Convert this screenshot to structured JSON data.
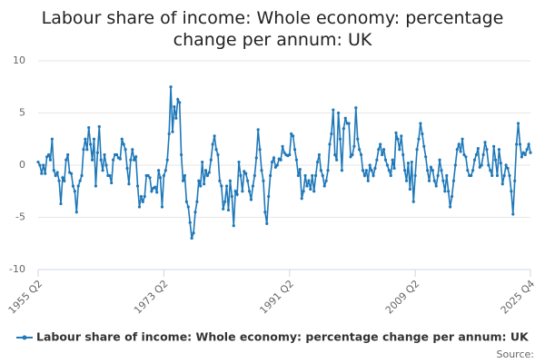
{
  "chart_data": {
    "type": "line",
    "title": "Labour share of income: Whole economy: percentage change per annum: UK",
    "source": "Source:",
    "categories": [
      "1955 Q2",
      null,
      null,
      null,
      null,
      null,
      null,
      null,
      null,
      null,
      null,
      null,
      null,
      null,
      null,
      null,
      null,
      null,
      null,
      null,
      null,
      null,
      null,
      null,
      null,
      null,
      null,
      null,
      null,
      null,
      null,
      null,
      null,
      null,
      null,
      null,
      null,
      null,
      null,
      null,
      null,
      null,
      null,
      null,
      null,
      null,
      null,
      null,
      null,
      null,
      null,
      null,
      null,
      null,
      null,
      null,
      null,
      null,
      null,
      null,
      null,
      null,
      null,
      null,
      null,
      null,
      null,
      null,
      null,
      null,
      null,
      null,
      "1973 Q2",
      null,
      null,
      null,
      null,
      null,
      null,
      null,
      null,
      null,
      null,
      null,
      null,
      null,
      null,
      null,
      null,
      null,
      null,
      null,
      null,
      null,
      null,
      null,
      null,
      null,
      null,
      null,
      null,
      null,
      null,
      null,
      null,
      null,
      null,
      null,
      null,
      null,
      null,
      null,
      null,
      null,
      null,
      null,
      null,
      null,
      null,
      null,
      null,
      null,
      null,
      null,
      null,
      null,
      null,
      null,
      null,
      null,
      null,
      null,
      null,
      null,
      null,
      null,
      null,
      null,
      null,
      null,
      null,
      null,
      null,
      null,
      "1991 Q2",
      null,
      null,
      null,
      null,
      null,
      null,
      null,
      null,
      null,
      null,
      null,
      null,
      null,
      null,
      null,
      null,
      null,
      null,
      null,
      null,
      null,
      null,
      null,
      null,
      null,
      null,
      null,
      null,
      null,
      null,
      null,
      null,
      null,
      null,
      null,
      null,
      null,
      null,
      null,
      null,
      null,
      null,
      null,
      null,
      null,
      null,
      null,
      null,
      null,
      null,
      null,
      null,
      null,
      null,
      null,
      null,
      null,
      null,
      null,
      null,
      null,
      null,
      null,
      null,
      null,
      null,
      null,
      null,
      null,
      null,
      null,
      "2009 Q2",
      null,
      null,
      null,
      null,
      null,
      null,
      null,
      null,
      null,
      null,
      null,
      null,
      null,
      null,
      null,
      null,
      null,
      null,
      null,
      null,
      null,
      null,
      null,
      null,
      null,
      null,
      null,
      null,
      null,
      null,
      null,
      null,
      null,
      null,
      null,
      null,
      null,
      null,
      null,
      null,
      null,
      null,
      null,
      null,
      null,
      null,
      null,
      null,
      null,
      null,
      null,
      null,
      null,
      null,
      null,
      null,
      null,
      null,
      null,
      null,
      null,
      null,
      null,
      null,
      null,
      "2025 Q4"
    ],
    "series": [
      {
        "name": "Labour share of income: Whole economy: percentage change per annum: UK",
        "color": "#1f78b8",
        "values": [
          0.3,
          0,
          -0.8,
          0,
          -0.8,
          0.8,
          1,
          0.5,
          2.5,
          -0.5,
          -1,
          -0.7,
          -1.5,
          -3.7,
          -1.2,
          -1.5,
          0.5,
          1,
          -0.7,
          -0.8,
          -2,
          -2.5,
          -4.5,
          -2,
          -1.5,
          -1,
          1.5,
          2.5,
          1.5,
          3.6,
          2,
          0.5,
          2.5,
          -2,
          1.2,
          3.7,
          0.5,
          -0.5,
          1,
          0,
          -1,
          -1,
          -1.7,
          0.5,
          1,
          1,
          0.7,
          0.6,
          2.5,
          2,
          1.5,
          -0.3,
          -1.8,
          0.5,
          1.5,
          0.5,
          0.8,
          -2,
          -4,
          -3,
          -3.5,
          -3,
          -1,
          -1,
          -1.2,
          -2.5,
          -2.2,
          -2.1,
          -2.6,
          -0.5,
          -1.2,
          -4,
          -1,
          -0.5,
          0.5,
          3,
          7.5,
          3.2,
          5.6,
          4.5,
          6.3,
          6,
          1,
          -1.5,
          -1,
          -3.5,
          -4,
          -5.5,
          -7,
          -6.5,
          -4.5,
          -3.5,
          -1.5,
          -2,
          0.3,
          -1.8,
          -0.5,
          -1,
          -0.7,
          0.5,
          2,
          2.8,
          1.5,
          1,
          -1.5,
          -2,
          -4.2,
          -3.5,
          -2,
          -4.3,
          -1.5,
          -3,
          -5.8,
          -2.5,
          -2.8,
          0.3,
          -1,
          -2.5,
          -0.6,
          -0.8,
          -1.5,
          -2.5,
          -3.3,
          -2,
          -1,
          0.7,
          3.4,
          1.5,
          -0.5,
          -1.5,
          -4.5,
          -5.6,
          -3,
          -1,
          0.3,
          0.7,
          -0.2,
          0,
          0.6,
          0.5,
          1.8,
          1.2,
          1,
          0.9,
          1,
          3,
          2.8,
          1.5,
          0.5,
          -1,
          -0.4,
          -3.2,
          -2.5,
          -1,
          -2,
          -1.5,
          -2.3,
          -1,
          -2.5,
          -1,
          0.3,
          1,
          -0.5,
          -1,
          -2,
          -1.5,
          -0.5,
          2,
          3,
          5.3,
          1,
          0.5,
          5,
          2.5,
          -0.5,
          3.5,
          4.5,
          4,
          4,
          0.8,
          1,
          1.8,
          5.5,
          2.5,
          1.5,
          1,
          -0.5,
          -1,
          -0.5,
          -1.5,
          0,
          -0.5,
          -1,
          -0.3,
          0.5,
          1.5,
          2,
          1,
          1.5,
          0.5,
          0,
          -0.5,
          -1,
          0.5,
          -0.3,
          3.1,
          2.5,
          1.5,
          2.8,
          1,
          -0.5,
          -1.5,
          0.2,
          -2.3,
          0.3,
          -3.5,
          -1,
          1.5,
          2.5,
          4,
          3,
          1.8,
          0.8,
          -0.5,
          -1.5,
          -0.2,
          -0.5,
          -1.5,
          -2,
          -1,
          0.5,
          -0.5,
          -1.5,
          -2.5,
          -1,
          -2.5,
          -4,
          -3,
          -1.5,
          0,
          1.5,
          2,
          1.3,
          2.5,
          1,
          0.8,
          -0.5,
          -1,
          -1,
          -0.5,
          0.5,
          1,
          1.6,
          -0.2,
          0,
          1,
          2.2,
          1.5,
          0,
          -0.5,
          -1,
          1.8,
          0.5,
          -1,
          1.5,
          0.2,
          -1.8,
          -1,
          0,
          -0.3,
          -1,
          -2.5,
          -4.7,
          -1.5,
          2,
          4,
          2,
          0.8,
          1.2,
          1,
          1.5,
          2,
          1.2
        ]
      }
    ],
    "ylim": [
      -10,
      10
    ],
    "yticks": [
      -10,
      -5,
      0,
      5,
      10
    ],
    "grid": true
  }
}
